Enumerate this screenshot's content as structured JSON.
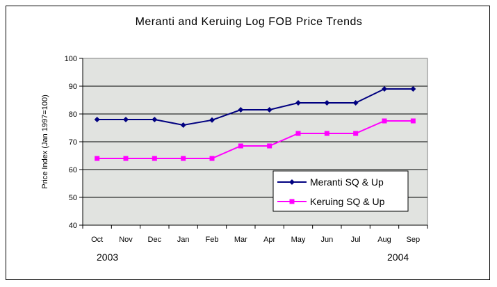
{
  "chart_data": {
    "type": "line",
    "title": "Meranti and Keruing Log FOB Price Trends",
    "xlabel": "",
    "ylabel": "Price Index (Jan 1997=100)",
    "categories": [
      "Oct",
      "Nov",
      "Dec",
      "Jan",
      "Feb",
      "Mar",
      "Apr",
      "May",
      "Jun",
      "Jul",
      "Aug",
      "Sep"
    ],
    "year_labels": {
      "start": "2003",
      "end": "2004"
    },
    "ylim": [
      40,
      100
    ],
    "yticks": [
      40,
      50,
      60,
      70,
      80,
      90,
      100
    ],
    "grid": true,
    "legend_position": "bottom-right",
    "series": [
      {
        "name": "Meranti SQ & Up",
        "color": "#000080",
        "marker": "diamond",
        "values": [
          78,
          78,
          78,
          76,
          77.8,
          81.5,
          81.5,
          84,
          84,
          84,
          89,
          89
        ]
      },
      {
        "name": "Keruing SQ & Up",
        "color": "#ff00ff",
        "marker": "square",
        "values": [
          64,
          64,
          64,
          64,
          64,
          68.5,
          68.5,
          73,
          73,
          73,
          77.5,
          77.5
        ]
      }
    ],
    "colors": {
      "plot_background": "#e1e3e0",
      "gridline": "#000000"
    }
  }
}
